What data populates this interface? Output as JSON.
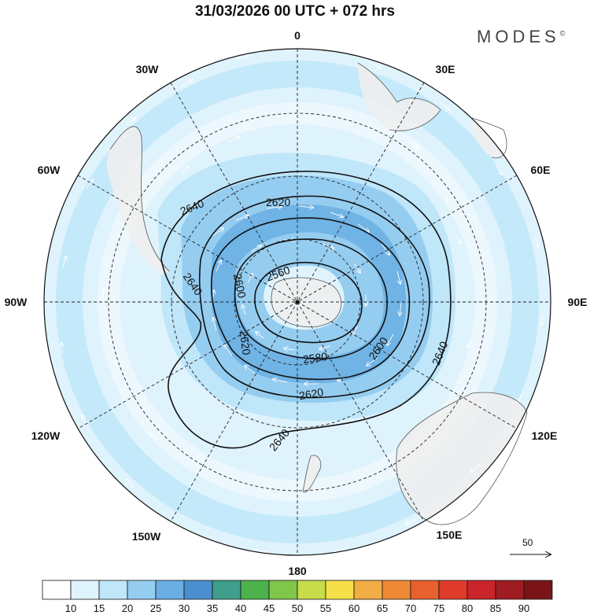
{
  "title": "31/03/2026  00 UTC  + 072 hrs",
  "brand": "MODES",
  "brand_mark": "©",
  "meridian_labels": [
    {
      "text": "0",
      "lon": 0
    },
    {
      "text": "30E",
      "lon": 30
    },
    {
      "text": "60E",
      "lon": 60
    },
    {
      "text": "90E",
      "lon": 90
    },
    {
      "text": "120E",
      "lon": 120
    },
    {
      "text": "150E",
      "lon": 150
    },
    {
      "text": "180",
      "lon": 180
    },
    {
      "text": "150W",
      "lon": -150
    },
    {
      "text": "120W",
      "lon": -120
    },
    {
      "text": "90W",
      "lon": -90
    },
    {
      "text": "60W",
      "lon": -60
    },
    {
      "text": "30W",
      "lon": -30
    }
  ],
  "contour_labels": [
    "2640",
    "2620",
    "2600",
    "2580",
    "2560",
    "2620",
    "2640",
    "2600",
    "2640",
    "2620",
    "2640"
  ],
  "wind_reference": "50",
  "colorbar": {
    "ticks": [
      "10",
      "15",
      "20",
      "25",
      "30",
      "35",
      "40",
      "45",
      "50",
      "55",
      "60",
      "65",
      "70",
      "75",
      "80",
      "85",
      "90"
    ],
    "colors": [
      "#ffffff",
      "#dff3fd",
      "#bfe6f9",
      "#95cdf0",
      "#6aaee3",
      "#4a8fcd",
      "#3f9e8c",
      "#4cb24c",
      "#7fc64a",
      "#c6dc4a",
      "#f5e04a",
      "#f3ad45",
      "#ee8a35",
      "#e8602e",
      "#df3b2b",
      "#c9252a",
      "#a01c22",
      "#7a1418"
    ]
  }
}
